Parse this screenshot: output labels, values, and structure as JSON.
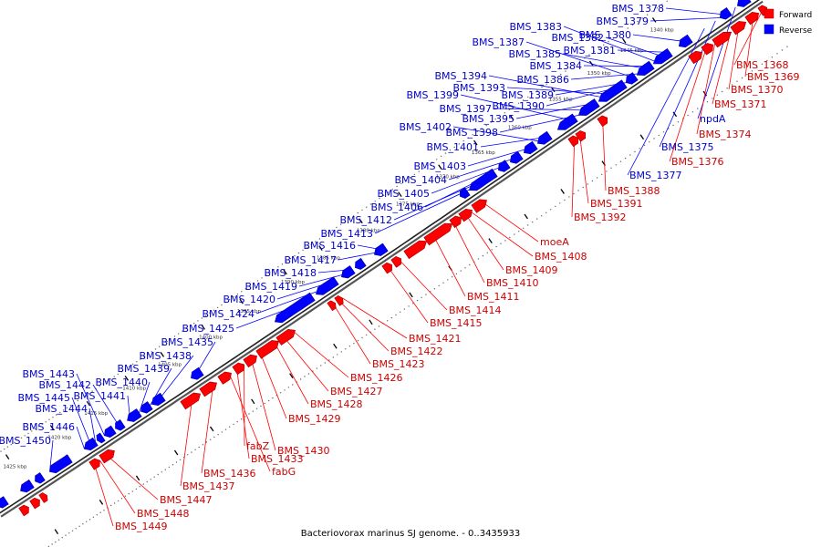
{
  "caption": "Bacteriovorax marinus SJ genome. - 0..3435933",
  "legend": [
    {
      "label": "Forward",
      "color": "#ff0000"
    },
    {
      "label": "Reverse",
      "color": "#0000ff"
    }
  ],
  "colors": {
    "forward": "#ff0000",
    "reverse": "#0000ff",
    "forward_label": "#cc0000",
    "reverse_label": "#0000cc",
    "backbone": "#444444"
  },
  "scale_ticks": [
    "1340 kbp",
    "1345 kbp",
    "1350 kbp",
    "1355 kbp",
    "1360 kbp",
    "1365 kbp",
    "1370 kbp",
    "1375 kbp",
    "1380 kbp",
    "1385 kbp",
    "1390 kbp",
    "1395 kbp",
    "1400 kbp",
    "1405 kbp",
    "1410 kbp",
    "1415 kbp",
    "1420 kbp",
    "1425 kbp"
  ],
  "reverse_genes": [
    "BMS_1378",
    "BMS_1379",
    "BMS_1380",
    "BMS_1381",
    "BMS_1382",
    "BMS_1383",
    "BMS_1384",
    "BMS_1385",
    "BMS_1386",
    "BMS_1387",
    "BMS_1389",
    "BMS_1390",
    "BMS_1393",
    "BMS_1394",
    "BMS_1395",
    "BMS_1397",
    "BMS_1398",
    "BMS_1399",
    "BMS_1401",
    "BMS_1402",
    "BMS_1403",
    "BMS_1404",
    "BMS_1405",
    "BMS_1406",
    "BMS_1412",
    "BMS_1413",
    "BMS_1416",
    "BMS_1417",
    "BMS_1418",
    "BMS_1419",
    "BMS_1420",
    "BMS_1424",
    "BMS_1425",
    "BMS_1435",
    "BMS_1438",
    "BMS_1439",
    "BMS_1440",
    "BMS_1441",
    "BMS_1442",
    "BMS_1443",
    "BMS_1444",
    "BMS_1445",
    "BMS_1446",
    "BMS_1450",
    "npdA",
    "BMS_1375",
    "BMS_1377"
  ],
  "forward_genes": [
    "BMS_1368",
    "BMS_1369",
    "BMS_1370",
    "BMS_1371",
    "BMS_1374",
    "BMS_1376",
    "BMS_1388",
    "BMS_1391",
    "BMS_1392",
    "moeA",
    "BMS_1408",
    "BMS_1409",
    "BMS_1410",
    "BMS_1411",
    "BMS_1414",
    "BMS_1415",
    "BMS_1421",
    "BMS_1422",
    "BMS_1423",
    "BMS_1426",
    "BMS_1427",
    "BMS_1428",
    "BMS_1429",
    "BMS_1430",
    "fabZ",
    "BMS_1433",
    "fabG",
    "BMS_1436",
    "BMS_1437",
    "BMS_1447",
    "BMS_1448",
    "BMS_1449"
  ]
}
